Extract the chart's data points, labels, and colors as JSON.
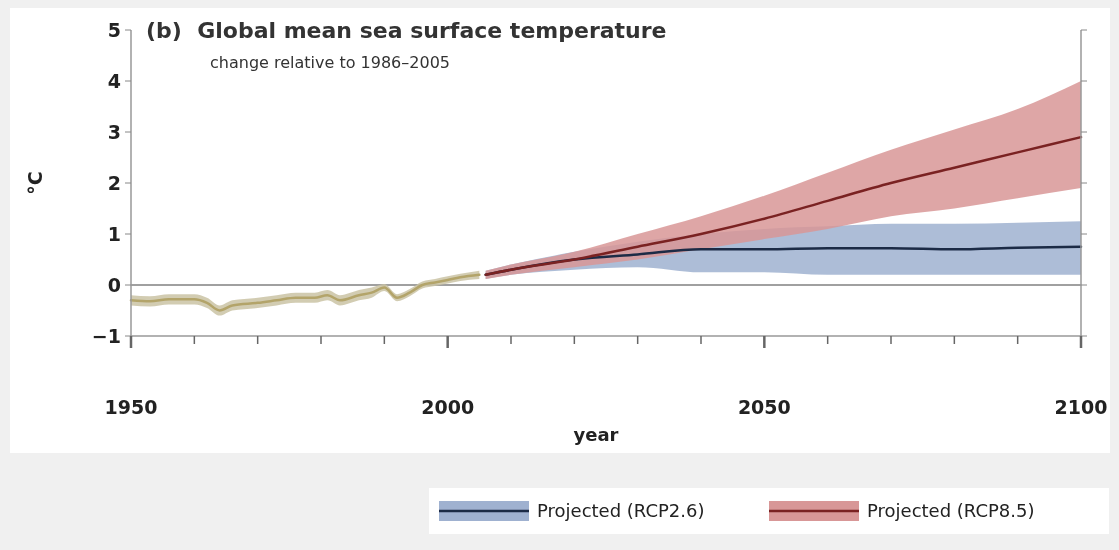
{
  "chart_data": {
    "type": "line",
    "title": "(b)  Global mean sea surface temperature",
    "subtitle": "change relative to 1986–2005",
    "xlabel": "year",
    "ylabel": "°C",
    "xlim": [
      1950,
      2100
    ],
    "ylim": [
      -1,
      5
    ],
    "xticks": [
      1950,
      {
        "value": 1960,
        "label": null
      },
      {
        "value": 1970,
        "label": null
      },
      {
        "value": 1980,
        "label": null
      },
      {
        "value": 1990,
        "label": null
      },
      2000,
      {
        "value": 2010,
        "label": null
      },
      {
        "value": 2020,
        "label": null
      },
      {
        "value": 2030,
        "label": null
      },
      {
        "value": 2040,
        "label": null
      },
      2050,
      {
        "value": 2060,
        "label": null
      },
      {
        "value": 2070,
        "label": null
      },
      {
        "value": 2080,
        "label": null
      },
      {
        "value": 2090,
        "label": null
      },
      2100
    ],
    "yticks": [
      -1,
      0,
      1,
      2,
      3,
      4,
      5
    ],
    "ref_lines": [
      {
        "axis": "y",
        "value": 0,
        "color": "#808080"
      }
    ],
    "legend": "bottom right",
    "grid": false,
    "marker": "none",
    "line_style": "solid",
    "series": [
      {
        "color": "#b3a46a",
        "x": [
          1950,
          1953,
          1956,
          1960,
          1962,
          1964,
          1966,
          1970,
          1973,
          1976,
          1979,
          1981,
          1983,
          1986,
          1988,
          1990,
          1992,
          1994,
          1996,
          1998,
          2000,
          2002,
          2005
        ],
        "values": [
          -0.3,
          -0.32,
          -0.28,
          -0.28,
          -0.35,
          -0.5,
          -0.4,
          -0.35,
          -0.3,
          -0.25,
          -0.25,
          -0.2,
          -0.3,
          -0.2,
          -0.15,
          -0.05,
          -0.25,
          -0.15,
          0.0,
          0.05,
          0.1,
          0.15,
          0.2
        ],
        "lower": [
          -0.4,
          -0.42,
          -0.38,
          -0.38,
          -0.45,
          -0.6,
          -0.5,
          -0.45,
          -0.4,
          -0.35,
          -0.35,
          -0.3,
          -0.4,
          -0.3,
          -0.25,
          -0.12,
          -0.32,
          -0.22,
          -0.07,
          -0.02,
          0.03,
          0.08,
          0.12
        ],
        "upper": [
          -0.2,
          -0.22,
          -0.18,
          -0.18,
          -0.25,
          -0.4,
          -0.3,
          -0.25,
          -0.2,
          -0.15,
          -0.15,
          -0.1,
          -0.2,
          -0.1,
          -0.05,
          0.02,
          -0.18,
          -0.08,
          0.07,
          0.12,
          0.17,
          0.22,
          0.28
        ]
      },
      {
        "name": "Projected (RCP2.6)",
        "color": "#1c2b46",
        "x": [
          2006,
          2010,
          2020,
          2030,
          2040,
          2050,
          2060,
          2070,
          2080,
          2090,
          2100
        ],
        "values": [
          0.2,
          0.3,
          0.5,
          0.6,
          0.7,
          0.7,
          0.72,
          0.72,
          0.7,
          0.73,
          0.75
        ],
        "lower": [
          0.12,
          0.2,
          0.3,
          0.35,
          0.25,
          0.25,
          0.2,
          0.2,
          0.2,
          0.2,
          0.2
        ],
        "upper": [
          0.28,
          0.4,
          0.65,
          0.85,
          1.0,
          1.1,
          1.15,
          1.2,
          1.2,
          1.22,
          1.25
        ]
      },
      {
        "name": "Projected (RCP8.5)",
        "color": "#7a2222",
        "x": [
          2006,
          2010,
          2020,
          2030,
          2040,
          2050,
          2060,
          2070,
          2080,
          2090,
          2100
        ],
        "values": [
          0.2,
          0.3,
          0.5,
          0.75,
          1.0,
          1.3,
          1.65,
          2.0,
          2.3,
          2.6,
          2.9
        ],
        "lower": [
          0.12,
          0.2,
          0.35,
          0.5,
          0.7,
          0.9,
          1.1,
          1.35,
          1.5,
          1.7,
          1.9
        ],
        "upper": [
          0.28,
          0.4,
          0.65,
          1.0,
          1.35,
          1.75,
          2.2,
          2.65,
          3.05,
          3.45,
          4.0
        ]
      }
    ]
  }
}
